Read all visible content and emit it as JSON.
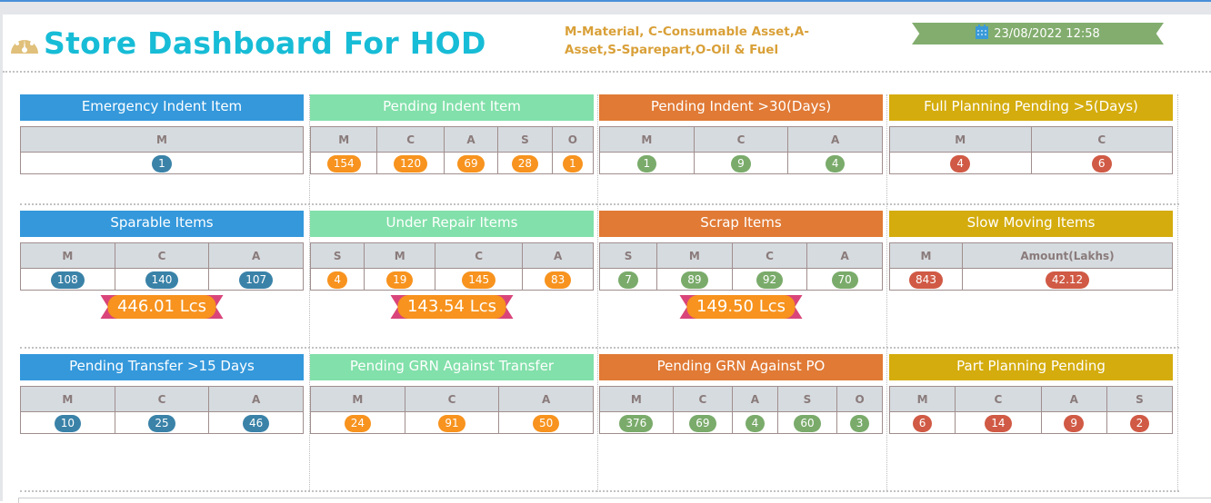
{
  "header": {
    "title": "Store Dashboard For HOD",
    "legend": "M-Material, C-Consumable Asset,A-Asset,S-Sparepart,O-Oil & Fuel",
    "datetime": "23/08/2022 12:58"
  },
  "colors": {
    "blue": "#3498db",
    "green": "#82e0aa",
    "orange": "#e07a35",
    "yellow": "#d4ac0d",
    "badge_blue": "#3a82a8",
    "badge_orange": "#f7931e",
    "badge_green": "#7aab6b",
    "badge_red": "#d05a45"
  },
  "panels": [
    {
      "title": "Emergency Indent Item",
      "color": "blue",
      "badge": "badge_blue",
      "cols": [
        "M"
      ],
      "values": [
        "1"
      ]
    },
    {
      "title": "Pending Indent Item",
      "color": "green",
      "badge": "badge_orange",
      "cols": [
        "M",
        "C",
        "A",
        "S",
        "O"
      ],
      "values": [
        "154",
        "120",
        "69",
        "28",
        "1"
      ]
    },
    {
      "title": "Pending Indent >30(Days)",
      "color": "orange",
      "badge": "badge_green",
      "cols": [
        "M",
        "C",
        "A"
      ],
      "values": [
        "1",
        "9",
        "4"
      ]
    },
    {
      "title": "Full Planning Pending >5(Days)",
      "color": "yellow",
      "badge": "badge_red",
      "cols": [
        "M",
        "C"
      ],
      "values": [
        "4",
        "6"
      ]
    },
    {
      "title": "Sparable Items",
      "color": "blue",
      "badge": "badge_blue",
      "cols": [
        "M",
        "C",
        "A"
      ],
      "values": [
        "108",
        "140",
        "107"
      ],
      "total": "446.01 Lcs"
    },
    {
      "title": "Under Repair Items",
      "color": "green",
      "badge": "badge_orange",
      "cols": [
        "S",
        "M",
        "C",
        "A"
      ],
      "values": [
        "4",
        "19",
        "145",
        "83"
      ],
      "total": "143.54 Lcs"
    },
    {
      "title": "Scrap Items",
      "color": "orange",
      "badge": "badge_green",
      "cols": [
        "S",
        "M",
        "C",
        "A"
      ],
      "values": [
        "7",
        "89",
        "92",
        "70"
      ],
      "total": "149.50 Lcs"
    },
    {
      "title": "Slow Moving Items",
      "color": "yellow",
      "badge": "badge_red",
      "cols": [
        "M",
        "Amount(Lakhs)"
      ],
      "values": [
        "843",
        "42.12"
      ]
    },
    {
      "title": "Pending Transfer >15 Days",
      "color": "blue",
      "badge": "badge_blue",
      "cols": [
        "M",
        "C",
        "A"
      ],
      "values": [
        "10",
        "25",
        "46"
      ]
    },
    {
      "title": "Pending GRN Against Transfer",
      "color": "green",
      "badge": "badge_orange",
      "cols": [
        "M",
        "C",
        "A"
      ],
      "values": [
        "24",
        "91",
        "50"
      ]
    },
    {
      "title": "Pending GRN Against PO",
      "color": "orange",
      "badge": "badge_green",
      "cols": [
        "M",
        "C",
        "A",
        "S",
        "O"
      ],
      "values": [
        "376",
        "69",
        "4",
        "60",
        "3"
      ]
    },
    {
      "title": "Part Planning Pending",
      "color": "yellow",
      "badge": "badge_red",
      "cols": [
        "M",
        "C",
        "A",
        "S"
      ],
      "values": [
        "6",
        "14",
        "9",
        "2"
      ]
    }
  ]
}
